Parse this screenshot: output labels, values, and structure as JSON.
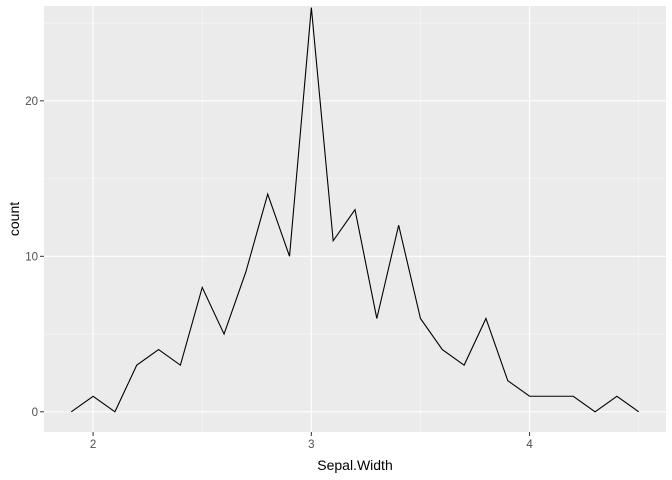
{
  "chart_data": {
    "type": "line",
    "xlabel": "Sepal.Width",
    "ylabel": "count",
    "xlim": [
      1.775,
      4.625
    ],
    "ylim": [
      -1.3,
      26.1
    ],
    "x_ticks": [
      {
        "value": 2,
        "label": "2"
      },
      {
        "value": 3,
        "label": "3"
      },
      {
        "value": 4,
        "label": "4"
      }
    ],
    "x_minor": [
      2.5,
      3.5,
      4.5
    ],
    "y_ticks": [
      {
        "value": 0,
        "label": "0"
      },
      {
        "value": 10,
        "label": "10"
      },
      {
        "value": 20,
        "label": "20"
      }
    ],
    "y_minor": [
      5,
      15,
      25
    ],
    "grid": true,
    "series": [
      {
        "x": [
          1.9,
          2.0,
          2.1,
          2.2,
          2.3,
          2.4,
          2.5,
          2.6,
          2.7,
          2.8,
          2.9,
          3.0,
          3.1,
          3.2,
          3.3,
          3.4,
          3.5,
          3.6,
          3.7,
          3.8,
          3.9,
          4.0,
          4.1,
          4.2,
          4.3,
          4.4,
          4.5
        ],
        "y": [
          0,
          1,
          0,
          3,
          4,
          3,
          8,
          5,
          9,
          14,
          10,
          26,
          11,
          13,
          6,
          12,
          6,
          4,
          3,
          6,
          2,
          1,
          1,
          1,
          0,
          1,
          0
        ]
      }
    ],
    "colors": {
      "panel": "#ebebeb",
      "grid_major": "#ffffff",
      "grid_minor": "#f7f7f7",
      "line": "#000000"
    }
  }
}
